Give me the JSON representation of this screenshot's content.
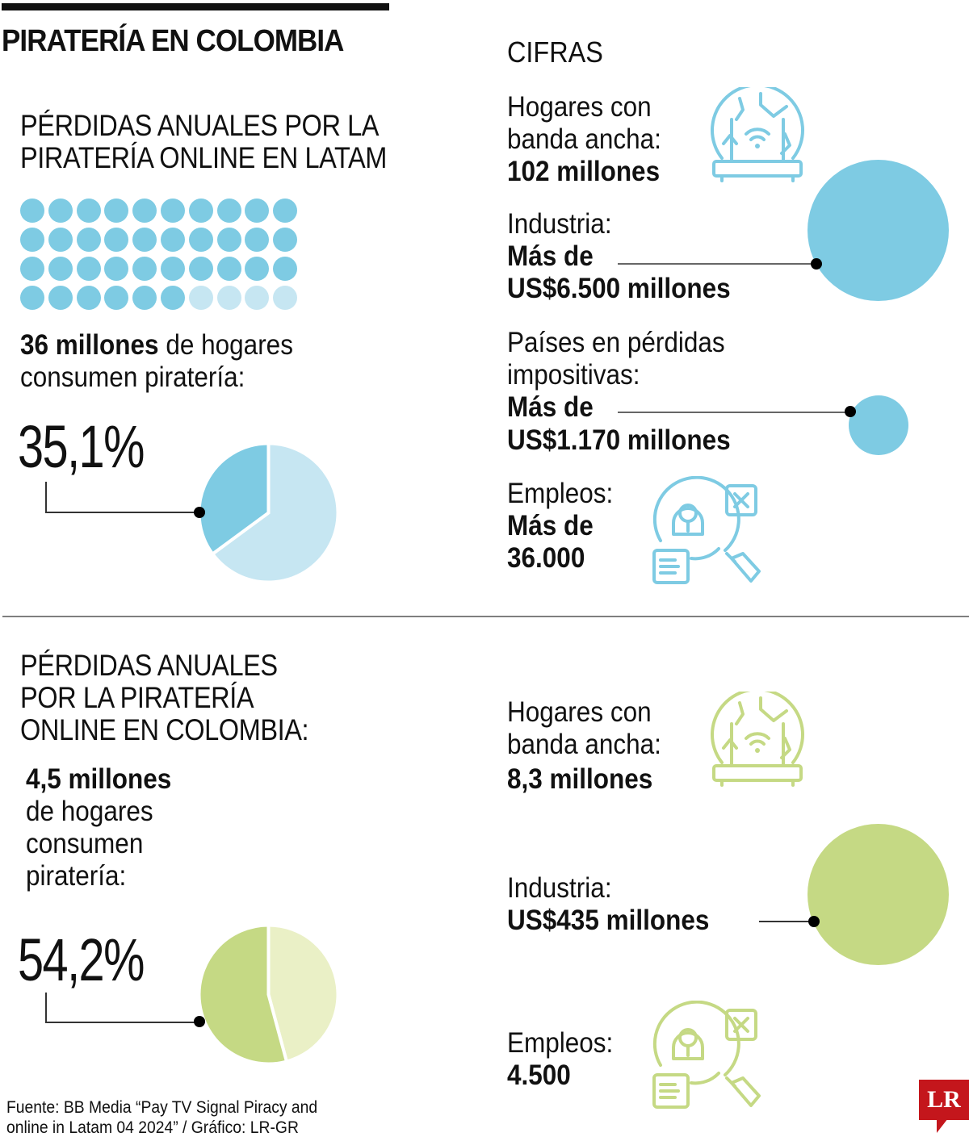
{
  "header": {
    "title": "PIRATERÍA EN COLOMBIA",
    "cifras_label": "CIFRAS"
  },
  "colors": {
    "latam_dark": "#7ecbe3",
    "latam_light": "#c6e6f2",
    "colombia_dark": "#c5d984",
    "colombia_light": "#eaf0c6",
    "logo_red": "#c4161c",
    "divider": "#7f7f7f"
  },
  "latam": {
    "title_line1": "PÉRDIDAS ANUALES  POR LA",
    "title_line2": "PIRATERÍA ONLINE EN LATAM",
    "households_bold": "36 millones",
    "households_rest_line1": " de hogares",
    "households_line2": "consumen piratería:",
    "percent_label": "35,1%",
    "stats": {
      "broadband_label_line1": "Hogares con",
      "broadband_label_line2": "banda ancha:",
      "broadband_value": "102 millones",
      "industry_label": "Industria:",
      "industry_value_line1": "Más de",
      "industry_value_line2": "US$6.500 millones",
      "tax_label_line1": "Países en pérdidas",
      "tax_label_line2": "impositivas:",
      "tax_value_line1": "Más de",
      "tax_value_line2": "US$1.170 millones",
      "jobs_label": "Empleos:",
      "jobs_value_line1": "Más de",
      "jobs_value_line2": "36.000"
    }
  },
  "colombia": {
    "title_line1": "PÉRDIDAS ANUALES",
    "title_line2": "POR LA PIRATERÍA",
    "title_line3": "ONLINE EN COLOMBIA:",
    "households_bold": "4,5 millones",
    "households_line2": "de hogares",
    "households_line3": "consumen",
    "households_line4": "piratería:",
    "percent_label": "54,2%",
    "stats": {
      "broadband_label_line1": "Hogares con",
      "broadband_label_line2": "banda ancha:",
      "broadband_value": "8,3 millones",
      "industry_label": "Industria:",
      "industry_value": "US$435 millones",
      "jobs_label": "Empleos:",
      "jobs_value": "4.500"
    }
  },
  "footer": {
    "source_line1": "Fuente: BB Media “Pay TV Signal Piracy and",
    "source_line2": "online in Latam 04 2024” / Gráfico: LR-GR",
    "logo": "LR"
  },
  "icons": {
    "router": "globe-router-icon",
    "job_search": "job-search-magnifier-icon"
  },
  "chart_data": [
    {
      "type": "pie",
      "title": "Hogares que consumen piratería en Latam",
      "categories": [
        "Consumen piratería",
        "No consumen"
      ],
      "values": [
        35.1,
        64.9
      ],
      "annotation": "35,1%"
    },
    {
      "type": "pie",
      "title": "Hogares que consumen piratería en Colombia",
      "categories": [
        "Consumen piratería",
        "No consumen"
      ],
      "values": [
        54.2,
        45.8
      ],
      "annotation": "54,2%"
    },
    {
      "type": "table",
      "title": "Waffle: 36 millones de hogares consumen piratería (Latam)",
      "grid": "10x4",
      "filled": 36,
      "empty": 4
    },
    {
      "type": "table",
      "title": "Cifras Latam",
      "categories": [
        "Hogares con banda ancha",
        "Industria",
        "Países en pérdidas impositivas",
        "Empleos"
      ],
      "values": [
        "102 millones",
        "Más de US$6.500 millones",
        "Más de US$1.170 millones",
        "Más de 36.000"
      ]
    },
    {
      "type": "table",
      "title": "Cifras Colombia",
      "categories": [
        "Hogares con banda ancha",
        "Industria",
        "Empleos"
      ],
      "values": [
        "8,3 millones",
        "US$435 millones",
        "4.500"
      ]
    }
  ]
}
